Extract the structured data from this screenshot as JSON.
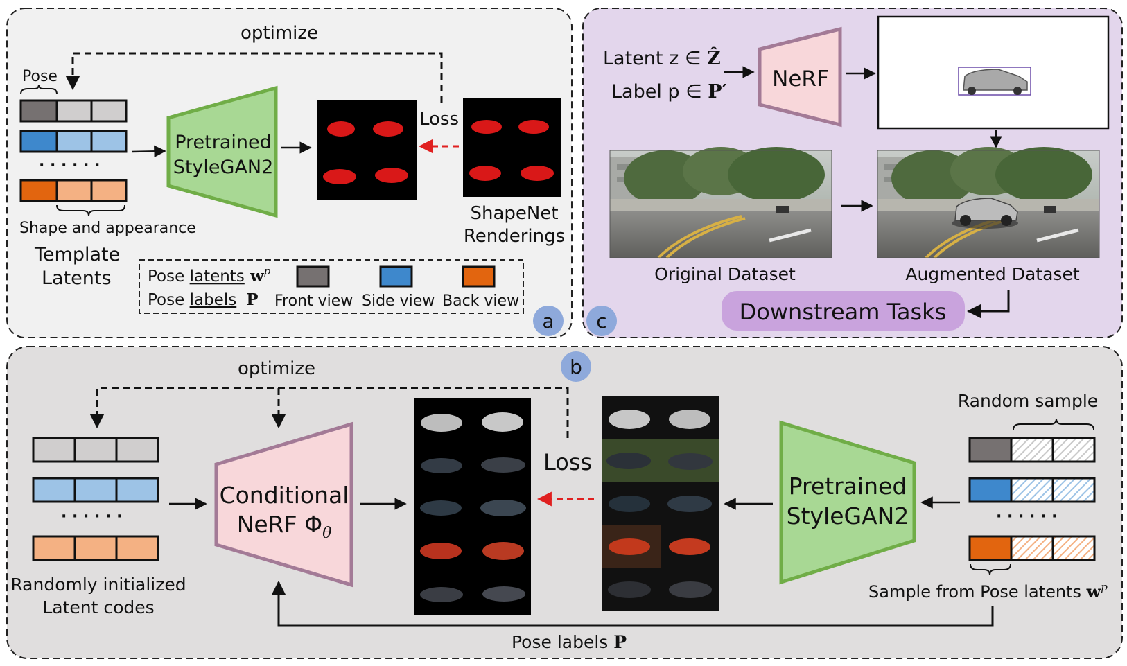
{
  "colors": {
    "panel_a_bg": "#f1f1f1",
    "panel_b_bg": "#e0dede",
    "panel_c_bg": "#e3d6ec",
    "stylegan_fill": "#a8d894",
    "stylegan_stroke": "#70ad47",
    "nerf_fill": "#f8d7da",
    "nerf_stroke": "#a37a96",
    "front": "#767171",
    "side": "#3e88cc",
    "back": "#e2650f",
    "gray_light": "#d0cece",
    "blue_light": "#9dc3e6",
    "orange_light": "#f4b183",
    "badge": "#8ea9db",
    "downstream": "#c9a3dd",
    "loss_arrow": "#e02020"
  },
  "panel_a": {
    "badge": "a",
    "optimize": "optimize",
    "pose_brace_label": "Pose",
    "shape_label": "Shape and appearance",
    "template_line1": "Template",
    "template_line2": "Latents",
    "stylegan_line1": "Pretrained",
    "stylegan_line2": "StyleGAN2",
    "loss": "Loss",
    "shapenet_line1": "ShapeNet",
    "shapenet_line2": "Renderings",
    "legend": {
      "pose_latents_prefix": "Pose ",
      "pose_latents_word": "latents",
      "pose_latents_symbol": "w",
      "pose_latents_sup": "p",
      "pose_labels_prefix": "Pose ",
      "pose_labels_word": "labels",
      "pose_labels_symbol": "P",
      "front": "Front view",
      "side": "Side view",
      "back": "Back view"
    }
  },
  "panel_b": {
    "badge": "b",
    "optimize": "optimize",
    "random_line1": "Randomly initialized",
    "random_line2": "Latent codes",
    "nerf_line1": "Conditional",
    "nerf_line2": "NeRF Φ",
    "nerf_sub": "θ",
    "loss": "Loss",
    "stylegan_line1": "Pretrained",
    "stylegan_line2": "StyleGAN2",
    "random_sample": "Random sample",
    "sample_from": "Sample from Pose latents ",
    "sample_symbol": "w",
    "sample_sup": "p",
    "pose_labels": "Pose labels ",
    "pose_labels_symbol": "P"
  },
  "panel_c": {
    "badge": "c",
    "latent_text": "Latent z ∈ ",
    "latent_symbol": "Ẑ",
    "label_text": "Label p ∈ ",
    "label_symbol": "P′",
    "nerf": "NeRF",
    "original": "Original Dataset",
    "augmented": "Augmented Dataset",
    "downstream": "Downstream Tasks"
  },
  "dots": "· · · · · ·"
}
